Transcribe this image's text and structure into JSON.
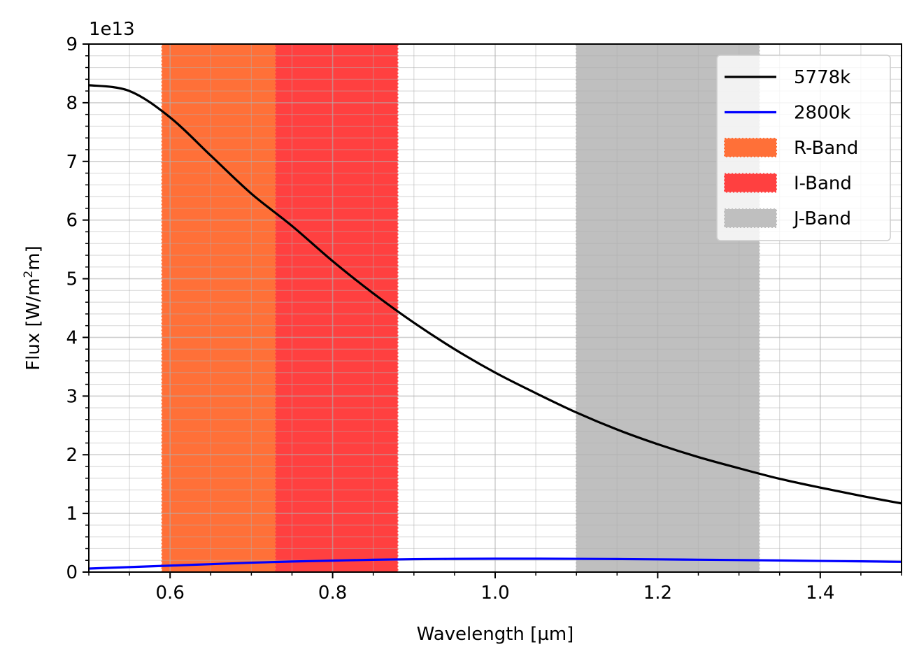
{
  "chart_data": {
    "type": "line",
    "xlabel": "Wavelength [µm]",
    "ylabel_prefix": "Flux [W/m",
    "ylabel_sup": "2",
    "ylabel_suffix": "m]",
    "y_offset_label": "1e13",
    "xlim": [
      0.5,
      1.5
    ],
    "ylim": [
      0,
      9
    ],
    "x_ticks": [
      0.6,
      0.8,
      1.0,
      1.2,
      1.4
    ],
    "x_tick_labels": [
      "0.6",
      "0.8",
      "1.0",
      "1.2",
      "1.4"
    ],
    "y_ticks": [
      0,
      1,
      2,
      3,
      4,
      5,
      6,
      7,
      8,
      9
    ],
    "y_tick_labels": [
      "0",
      "1",
      "2",
      "3",
      "4",
      "5",
      "6",
      "7",
      "8",
      "9"
    ],
    "grid": "major and minor",
    "legend_position": "top-right",
    "bands": [
      {
        "name": "R-Band",
        "x_start": 0.59,
        "x_end": 0.73,
        "color": "#ff7038"
      },
      {
        "name": "I-Band",
        "x_start": 0.73,
        "x_end": 0.88,
        "color": "#ff4040"
      },
      {
        "name": "J-Band",
        "x_start": 1.1,
        "x_end": 1.325,
        "color": "#bfbfbf"
      }
    ],
    "series": [
      {
        "name": "5778k",
        "color": "#000000",
        "x": [
          0.5,
          0.55,
          0.6,
          0.65,
          0.7,
          0.75,
          0.8,
          0.85,
          0.9,
          0.95,
          1.0,
          1.05,
          1.1,
          1.15,
          1.2,
          1.25,
          1.3,
          1.35,
          1.4,
          1.45,
          1.5
        ],
        "y": [
          8.3,
          8.2,
          7.75,
          7.1,
          6.45,
          5.9,
          5.3,
          4.75,
          4.25,
          3.8,
          3.4,
          3.05,
          2.72,
          2.43,
          2.18,
          1.96,
          1.77,
          1.59,
          1.44,
          1.3,
          1.17
        ]
      },
      {
        "name": "2800k",
        "color": "#0000ff",
        "x": [
          0.5,
          0.55,
          0.6,
          0.65,
          0.7,
          0.75,
          0.8,
          0.85,
          0.9,
          0.95,
          1.0,
          1.05,
          1.1,
          1.15,
          1.2,
          1.25,
          1.3,
          1.35,
          1.4,
          1.45,
          1.5
        ],
        "y": [
          0.06,
          0.085,
          0.11,
          0.135,
          0.16,
          0.18,
          0.195,
          0.21,
          0.22,
          0.225,
          0.228,
          0.228,
          0.226,
          0.222,
          0.217,
          0.211,
          0.205,
          0.198,
          0.19,
          0.183,
          0.175
        ]
      }
    ]
  }
}
